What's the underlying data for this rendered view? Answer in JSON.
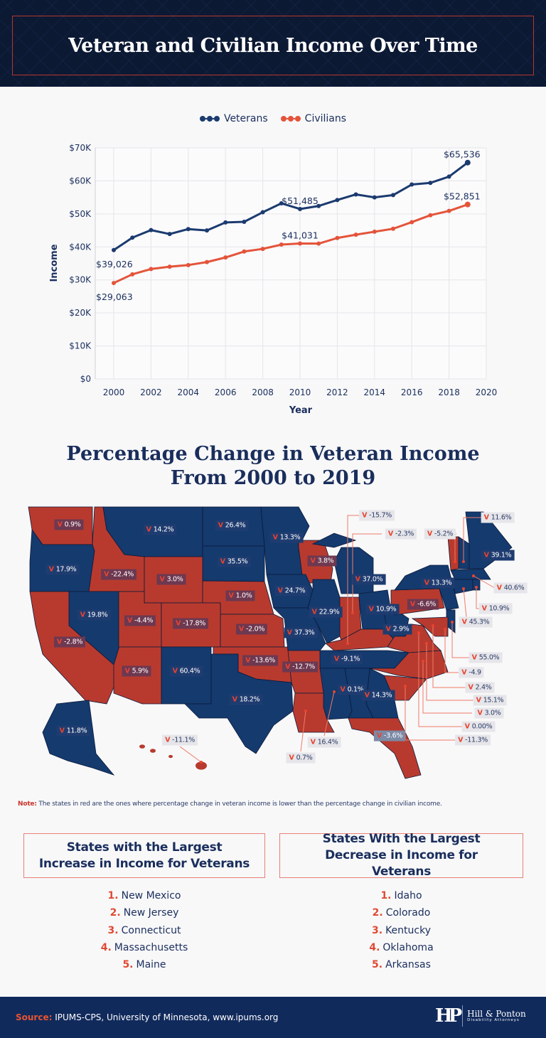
{
  "header": {
    "title": "Veteran and Civilian Income Over Time"
  },
  "colors": {
    "veterans": "#1b3a6f",
    "civilians": "#e4543a",
    "navy": "#0c1933",
    "red_state": "#b83a2e",
    "blue_state": "#143a6e"
  },
  "chart_data": {
    "type": "line",
    "xlabel": "Year",
    "ylabel": "Income",
    "xlim": [
      2000,
      2020
    ],
    "ylim": [
      0,
      70000
    ],
    "x_ticks": [
      "2000",
      "2002",
      "2004",
      "2006",
      "2008",
      "2010",
      "2012",
      "2014",
      "2016",
      "2018",
      "2020"
    ],
    "y_ticks": [
      "$0",
      "$10K",
      "$20K",
      "$30K",
      "$40K",
      "$50K",
      "$60K",
      "$70K"
    ],
    "grid": true,
    "legend_placement": "top-center",
    "x": [
      2000,
      2001,
      2002,
      2003,
      2004,
      2005,
      2006,
      2007,
      2008,
      2009,
      2010,
      2011,
      2012,
      2013,
      2014,
      2015,
      2016,
      2017,
      2018,
      2019
    ],
    "series": [
      {
        "name": "Veterans",
        "values": [
          39026,
          42800,
          45100,
          43900,
          45400,
          45000,
          47400,
          47600,
          50500,
          53200,
          51485,
          52400,
          54200,
          55900,
          55000,
          55700,
          58900,
          59400,
          61300,
          65536
        ]
      },
      {
        "name": "Civilians",
        "values": [
          29063,
          31700,
          33300,
          34000,
          34500,
          35400,
          36800,
          38600,
          39400,
          40700,
          41031,
          41000,
          42700,
          43700,
          44600,
          45500,
          47500,
          49600,
          50900,
          52851
        ]
      }
    ],
    "annotations": [
      {
        "series": "Veterans",
        "x": 2000,
        "text": "$39,026"
      },
      {
        "series": "Veterans",
        "x": 2010,
        "text": "$51,485"
      },
      {
        "series": "Veterans",
        "x": 2019,
        "text": "$65,536"
      },
      {
        "series": "Civilians",
        "x": 2000,
        "text": "$29,063"
      },
      {
        "series": "Civilians",
        "x": 2010,
        "text": "$41,031"
      },
      {
        "series": "Civilians",
        "x": 2019,
        "text": "$52,851"
      }
    ]
  },
  "map": {
    "title_line1": "Percentage Change in Veteran Income",
    "title_line2": "From 2000 to 2019",
    "marker": "V",
    "states": {
      "WA": "0.9%",
      "MT": "14.2%",
      "ND": "26.4%",
      "SD": "35.5%",
      "OR": "17.9%",
      "ID": "-22.4%",
      "WY": "3.0%",
      "NE": "1.0%",
      "NV": "19.8%",
      "UT": "-4.4%",
      "CO": "-17.8%",
      "KS": "-2.0%",
      "CA": "-2.8%",
      "AZ": "5.9%",
      "NM": "60.4%",
      "OK": "-13.6%",
      "TX": "18.2%",
      "AK": "11.8%",
      "HI": "-11.1%",
      "MN": "13.3%",
      "WI": "3.8%",
      "MI": "37.0%",
      "IA": "24.7%",
      "IL": "22.9%",
      "IN": "-2.3%",
      "KY": "-15.7%",
      "OH": "10.9%",
      "PA": "-6.6%",
      "NY": "13.3%",
      "VT": "-5.2%",
      "NH": "11.6%",
      "ME": "39.1%",
      "MA": "40.6%",
      "RI": "10.9%",
      "CT": "45.3%",
      "NJ": "55.0%",
      "DE": "-4.9",
      "MD": "2.4%",
      "WV": "2.9%",
      "VA": "15.1%",
      "NC": "3.0%",
      "DC": "0.00%",
      "SC": "-11.3%",
      "MO": "37.3%",
      "AR": "-12.7%",
      "TN": "-9.1%",
      "MS": "16.4%",
      "AL": "0.1%",
      "GA": "14.3%",
      "LA": "0.7%",
      "FL": "-3.6%"
    },
    "lower_than_civilian": [
      "WA",
      "ID",
      "WY",
      "NE",
      "UT",
      "CO",
      "KS",
      "CA",
      "AZ",
      "OK",
      "HI",
      "WI",
      "IN",
      "KY",
      "PA",
      "VT",
      "DE",
      "MD",
      "VA",
      "NC",
      "DC",
      "SC",
      "AR",
      "LA",
      "FL"
    ]
  },
  "note": {
    "label": "Note:",
    "text": " The states in red are the ones where percentage change in veteran income is lower than the percentage change in civilian income."
  },
  "increase": {
    "title": "States with the Largest Increase in Income for Veterans",
    "items": [
      "New Mexico",
      "New Jersey",
      "Connecticut",
      "Massachusetts",
      "Maine"
    ]
  },
  "decrease": {
    "title": "States With the Largest Decrease in Income for Veterans",
    "items": [
      "Idaho",
      "Colorado",
      "Kentucky",
      "Oklahoma",
      "Arkansas"
    ]
  },
  "footer": {
    "source_label": "Source:",
    "source_text": " IPUMS-CPS, University of Minnesota, www.ipums.org",
    "logo_mark": "H&P",
    "logo_name": "Hill & Ponton",
    "logo_sub": "Disability Attorneys"
  }
}
